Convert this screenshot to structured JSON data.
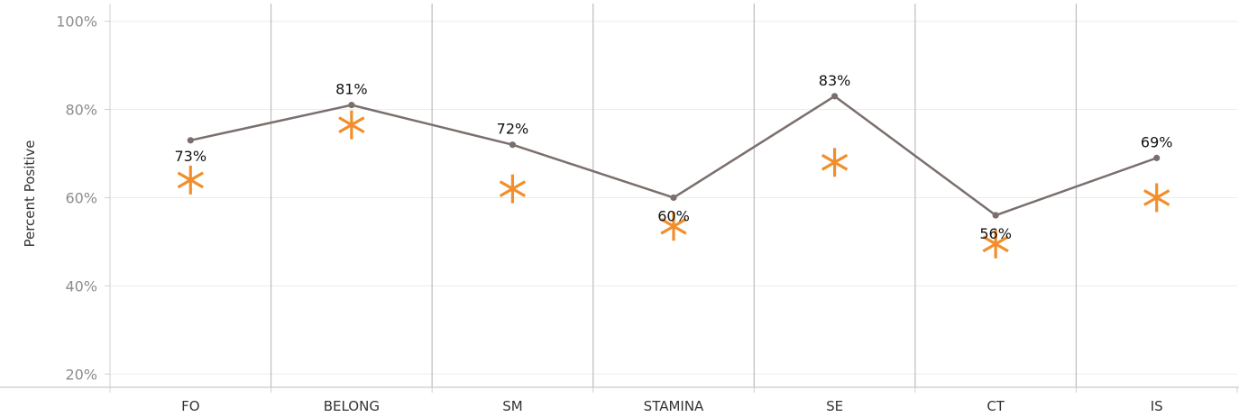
{
  "chart_data": {
    "type": "line",
    "ylabel": "Percent Positive",
    "ylim": [
      17,
      104
    ],
    "yticks": [
      "20%",
      "40%",
      "60%",
      "80%",
      "100%"
    ],
    "categories": [
      "FO",
      "BELONG",
      "SM",
      "STAMINA",
      "SE",
      "CT",
      "IS"
    ],
    "series": [
      {
        "kind": "line",
        "color": "#7a6f6d",
        "values": [
          73,
          81,
          72,
          60,
          83,
          56,
          69
        ],
        "labels": [
          "73%",
          "81%",
          "72%",
          "60%",
          "83%",
          "56%",
          "69%"
        ]
      },
      {
        "kind": "marker",
        "marker": "asterisk",
        "color": "#f28e2b",
        "values": [
          64,
          76.5,
          62,
          53.5,
          68,
          49.5,
          60
        ]
      }
    ],
    "grid": true,
    "legend": "none"
  }
}
